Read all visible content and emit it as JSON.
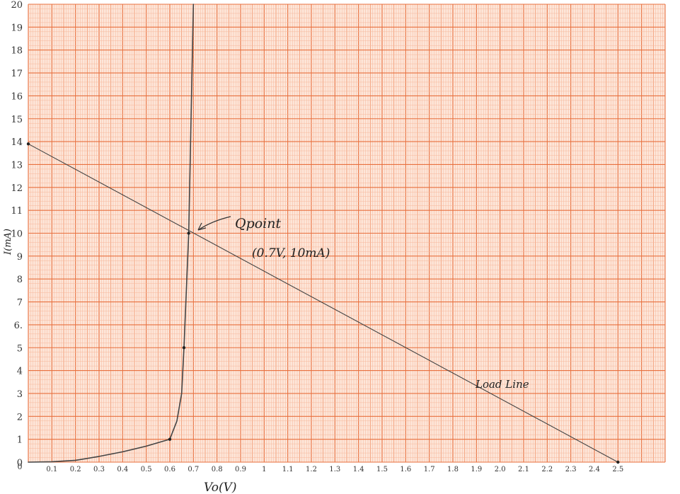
{
  "chart_data": {
    "type": "line",
    "xlabel": "Vo(V)",
    "ylabel": "I(mA)",
    "xlim": [
      0,
      2.7
    ],
    "ylim": [
      0,
      20
    ],
    "x_ticks": [
      {
        "v": 0.1,
        "label": "0.1"
      },
      {
        "v": 0.2,
        "label": "0.2"
      },
      {
        "v": 0.3,
        "label": "0.3"
      },
      {
        "v": 0.4,
        "label": "0.4"
      },
      {
        "v": 0.5,
        "label": "0.5"
      },
      {
        "v": 0.6,
        "label": "0.6"
      },
      {
        "v": 0.7,
        "label": "0.7"
      },
      {
        "v": 0.8,
        "label": "0.8"
      },
      {
        "v": 0.9,
        "label": "0.9"
      },
      {
        "v": 1.0,
        "label": "1"
      },
      {
        "v": 1.1,
        "label": "1.1"
      },
      {
        "v": 1.2,
        "label": "1.2"
      },
      {
        "v": 1.3,
        "label": "1.3"
      },
      {
        "v": 1.4,
        "label": "1.4"
      },
      {
        "v": 1.5,
        "label": "1.5"
      },
      {
        "v": 1.6,
        "label": "1.6"
      },
      {
        "v": 1.7,
        "label": "1.7"
      },
      {
        "v": 1.8,
        "label": "1.8"
      },
      {
        "v": 1.9,
        "label": "1.9"
      },
      {
        "v": 2.0,
        "label": "2.0"
      },
      {
        "v": 2.1,
        "label": "2.1"
      },
      {
        "v": 2.2,
        "label": "2.2"
      },
      {
        "v": 2.3,
        "label": "2.3"
      },
      {
        "v": 2.4,
        "label": "2.4"
      },
      {
        "v": 2.5,
        "label": "2.5"
      }
    ],
    "y_ticks": [
      {
        "v": 0,
        "label": "0"
      },
      {
        "v": 1,
        "label": "1"
      },
      {
        "v": 2,
        "label": "2"
      },
      {
        "v": 3,
        "label": "3"
      },
      {
        "v": 4,
        "label": "4"
      },
      {
        "v": 5,
        "label": "5"
      },
      {
        "v": 6,
        "label": "6."
      },
      {
        "v": 7,
        "label": "7"
      },
      {
        "v": 8,
        "label": "8"
      },
      {
        "v": 9,
        "label": "9"
      },
      {
        "v": 10,
        "label": "10"
      },
      {
        "v": 11,
        "label": "11"
      },
      {
        "v": 12,
        "label": "12"
      },
      {
        "v": 13,
        "label": "13"
      },
      {
        "v": 14,
        "label": "14"
      },
      {
        "v": 15,
        "label": "15"
      },
      {
        "v": 16,
        "label": "16"
      },
      {
        "v": 17,
        "label": "17"
      },
      {
        "v": 18,
        "label": "18"
      },
      {
        "v": 19,
        "label": "19"
      },
      {
        "v": 20,
        "label": "20"
      }
    ],
    "series": [
      {
        "role": "diode-curve",
        "points": [
          [
            0,
            0
          ],
          [
            0.1,
            0.02
          ],
          [
            0.2,
            0.08
          ],
          [
            0.3,
            0.25
          ],
          [
            0.4,
            0.45
          ],
          [
            0.5,
            0.7
          ],
          [
            0.55,
            0.85
          ],
          [
            0.6,
            1.0
          ],
          [
            0.63,
            1.8
          ],
          [
            0.65,
            3.0
          ],
          [
            0.66,
            5.0
          ],
          [
            0.68,
            10.0
          ],
          [
            0.7,
            20.0
          ]
        ]
      },
      {
        "role": "load-line",
        "points": [
          [
            0,
            13.9
          ],
          [
            2.5,
            0
          ]
        ]
      }
    ],
    "markers": [
      {
        "x": 0,
        "y": 13.9
      },
      {
        "x": 0.6,
        "y": 1.0
      },
      {
        "x": 0.66,
        "y": 5.0
      },
      {
        "x": 0.68,
        "y": 10.0
      },
      {
        "x": 2.5,
        "y": 0
      }
    ],
    "annotations": {
      "qpoint_label": "Qpoint",
      "qpoint_value": "(0.7V, 10mA)",
      "load_line_label": "Load Line"
    },
    "grid": true,
    "colors": {
      "paper": "#fde6d9",
      "grid_minor": "#f6b69a",
      "grid_medium": "#f1946b",
      "grid_major": "#e8703f",
      "curve": "#444444"
    }
  }
}
